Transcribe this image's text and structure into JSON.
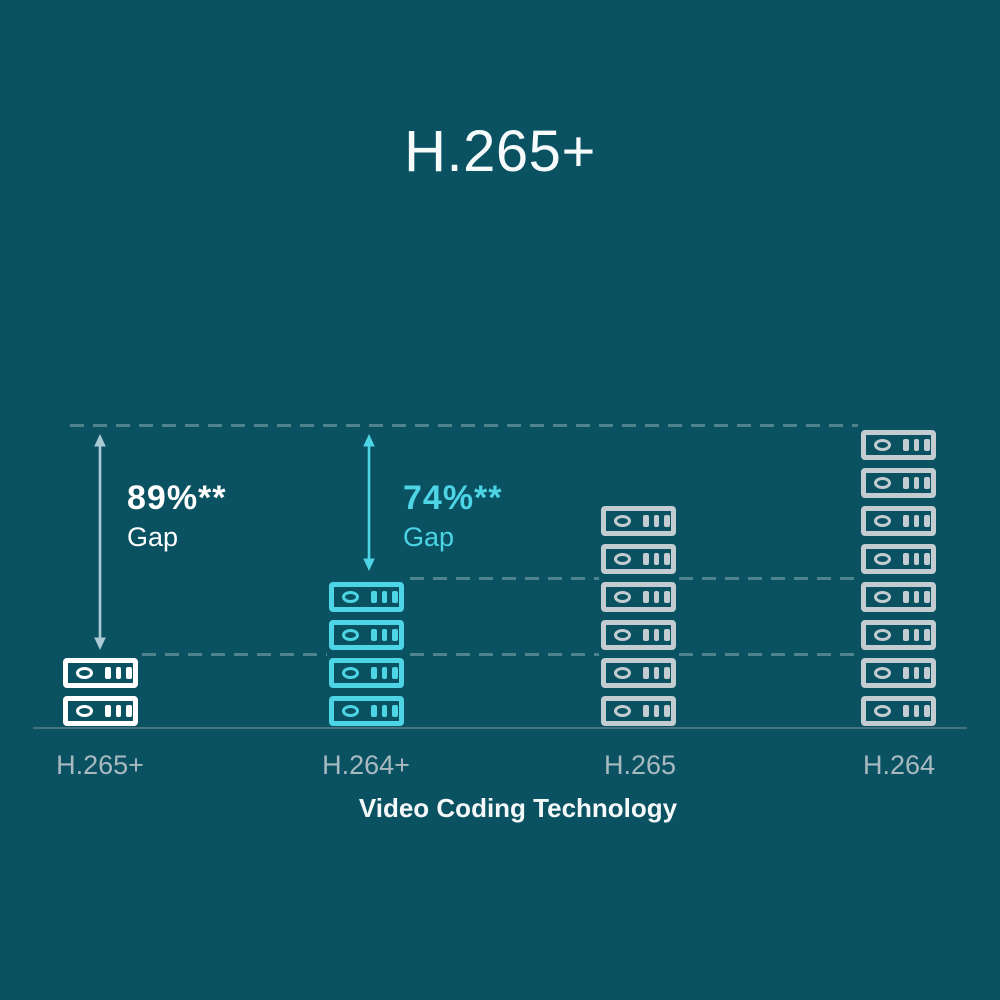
{
  "chart_data": {
    "type": "bar",
    "subtype": "pictogram-stack",
    "title": "H.265+",
    "xlabel": "Video Coding Technology",
    "categories": [
      "H.265+",
      "H.264+",
      "H.265",
      "H.264"
    ],
    "values": [
      2,
      4,
      6,
      8
    ],
    "value_unit": "storage-server-icons",
    "series_colors": [
      "#FFFFFF",
      "#4DD4E5",
      "#C3CCD0",
      "#C3CCD0"
    ],
    "legend": false,
    "reference_lines": "dashed horizontal levels at tops of H.264, H.264+ and H.265+ stacks",
    "annotations": [
      {
        "label": "89%**",
        "sublabel": "Gap",
        "from": "H.265+",
        "to": "H.264",
        "color": "#FFFFFF"
      },
      {
        "label": "74%**",
        "sublabel": "Gap",
        "from": "H.264+",
        "to": "H.264",
        "color": "#4DD4E5"
      }
    ]
  },
  "colors": {
    "background": "#0A5262",
    "accent_cyan": "#4DD4E5",
    "icon_gray": "#C3CCD0",
    "icon_white": "#FFFFFF",
    "axis_label": "#A8BAC0",
    "dashed_line": "#4E838E",
    "axis_line": "#49737E",
    "arrow_light": "#ABCBD4"
  },
  "icons": {
    "server": "server-drive-icon",
    "arrow": "double-headed-vertical-arrow-icon"
  }
}
